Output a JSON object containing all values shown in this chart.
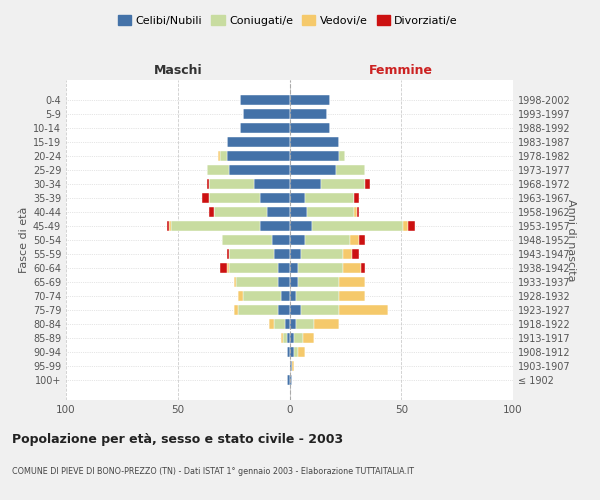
{
  "age_groups": [
    "100+",
    "95-99",
    "90-94",
    "85-89",
    "80-84",
    "75-79",
    "70-74",
    "65-69",
    "60-64",
    "55-59",
    "50-54",
    "45-49",
    "40-44",
    "35-39",
    "30-34",
    "25-29",
    "20-24",
    "15-19",
    "10-14",
    "5-9",
    "0-4"
  ],
  "birth_years": [
    "≤ 1902",
    "1903-1907",
    "1908-1912",
    "1913-1917",
    "1918-1922",
    "1923-1927",
    "1928-1932",
    "1933-1937",
    "1938-1942",
    "1943-1947",
    "1948-1952",
    "1953-1957",
    "1958-1962",
    "1963-1967",
    "1968-1972",
    "1973-1977",
    "1978-1982",
    "1983-1987",
    "1988-1992",
    "1993-1997",
    "1998-2002"
  ],
  "males": {
    "celibi": [
      1,
      0,
      1,
      1,
      2,
      5,
      4,
      5,
      5,
      7,
      8,
      13,
      10,
      13,
      16,
      27,
      28,
      28,
      22,
      21,
      22
    ],
    "coniugati": [
      0,
      0,
      0,
      2,
      5,
      18,
      17,
      19,
      22,
      20,
      22,
      40,
      24,
      23,
      20,
      10,
      3,
      0,
      0,
      0,
      0
    ],
    "vedovi": [
      0,
      0,
      0,
      1,
      2,
      2,
      2,
      1,
      1,
      0,
      0,
      1,
      0,
      0,
      0,
      0,
      1,
      0,
      0,
      0,
      0
    ],
    "divorziati": [
      0,
      0,
      0,
      0,
      0,
      0,
      0,
      0,
      3,
      1,
      0,
      1,
      2,
      3,
      1,
      0,
      0,
      0,
      0,
      0,
      0
    ]
  },
  "females": {
    "nubili": [
      1,
      1,
      2,
      2,
      3,
      5,
      3,
      4,
      4,
      5,
      7,
      10,
      8,
      7,
      14,
      21,
      22,
      22,
      18,
      17,
      18
    ],
    "coniugate": [
      0,
      0,
      2,
      4,
      8,
      17,
      19,
      18,
      20,
      19,
      20,
      41,
      21,
      22,
      20,
      13,
      3,
      0,
      0,
      0,
      0
    ],
    "vedove": [
      0,
      1,
      3,
      5,
      11,
      22,
      12,
      12,
      8,
      4,
      4,
      2,
      1,
      0,
      0,
      0,
      0,
      0,
      0,
      0,
      0
    ],
    "divorziate": [
      0,
      0,
      0,
      0,
      0,
      0,
      0,
      0,
      2,
      3,
      3,
      3,
      1,
      2,
      2,
      0,
      0,
      0,
      0,
      0,
      0
    ]
  },
  "colors": {
    "celibi": "#4472a8",
    "coniugati": "#c8dca0",
    "vedovi": "#f5c96b",
    "divorziati": "#cc1111"
  },
  "title": "Popolazione per età, sesso e stato civile - 2003",
  "subtitle": "COMUNE DI PIEVE DI BONO-PREZZO (TN) - Dati ISTAT 1° gennaio 2003 - Elaborazione TUTTAITALIA.IT",
  "xlabel_left": "Maschi",
  "xlabel_right": "Femmine",
  "ylabel_left": "Fasce di età",
  "ylabel_right": "Anni di nascita",
  "xlim": 100,
  "bg_color": "#f0f0f0",
  "plot_bg_color": "#ffffff",
  "legend_labels": [
    "Celibi/Nubili",
    "Coniugati/e",
    "Vedovi/e",
    "Divorziati/e"
  ]
}
